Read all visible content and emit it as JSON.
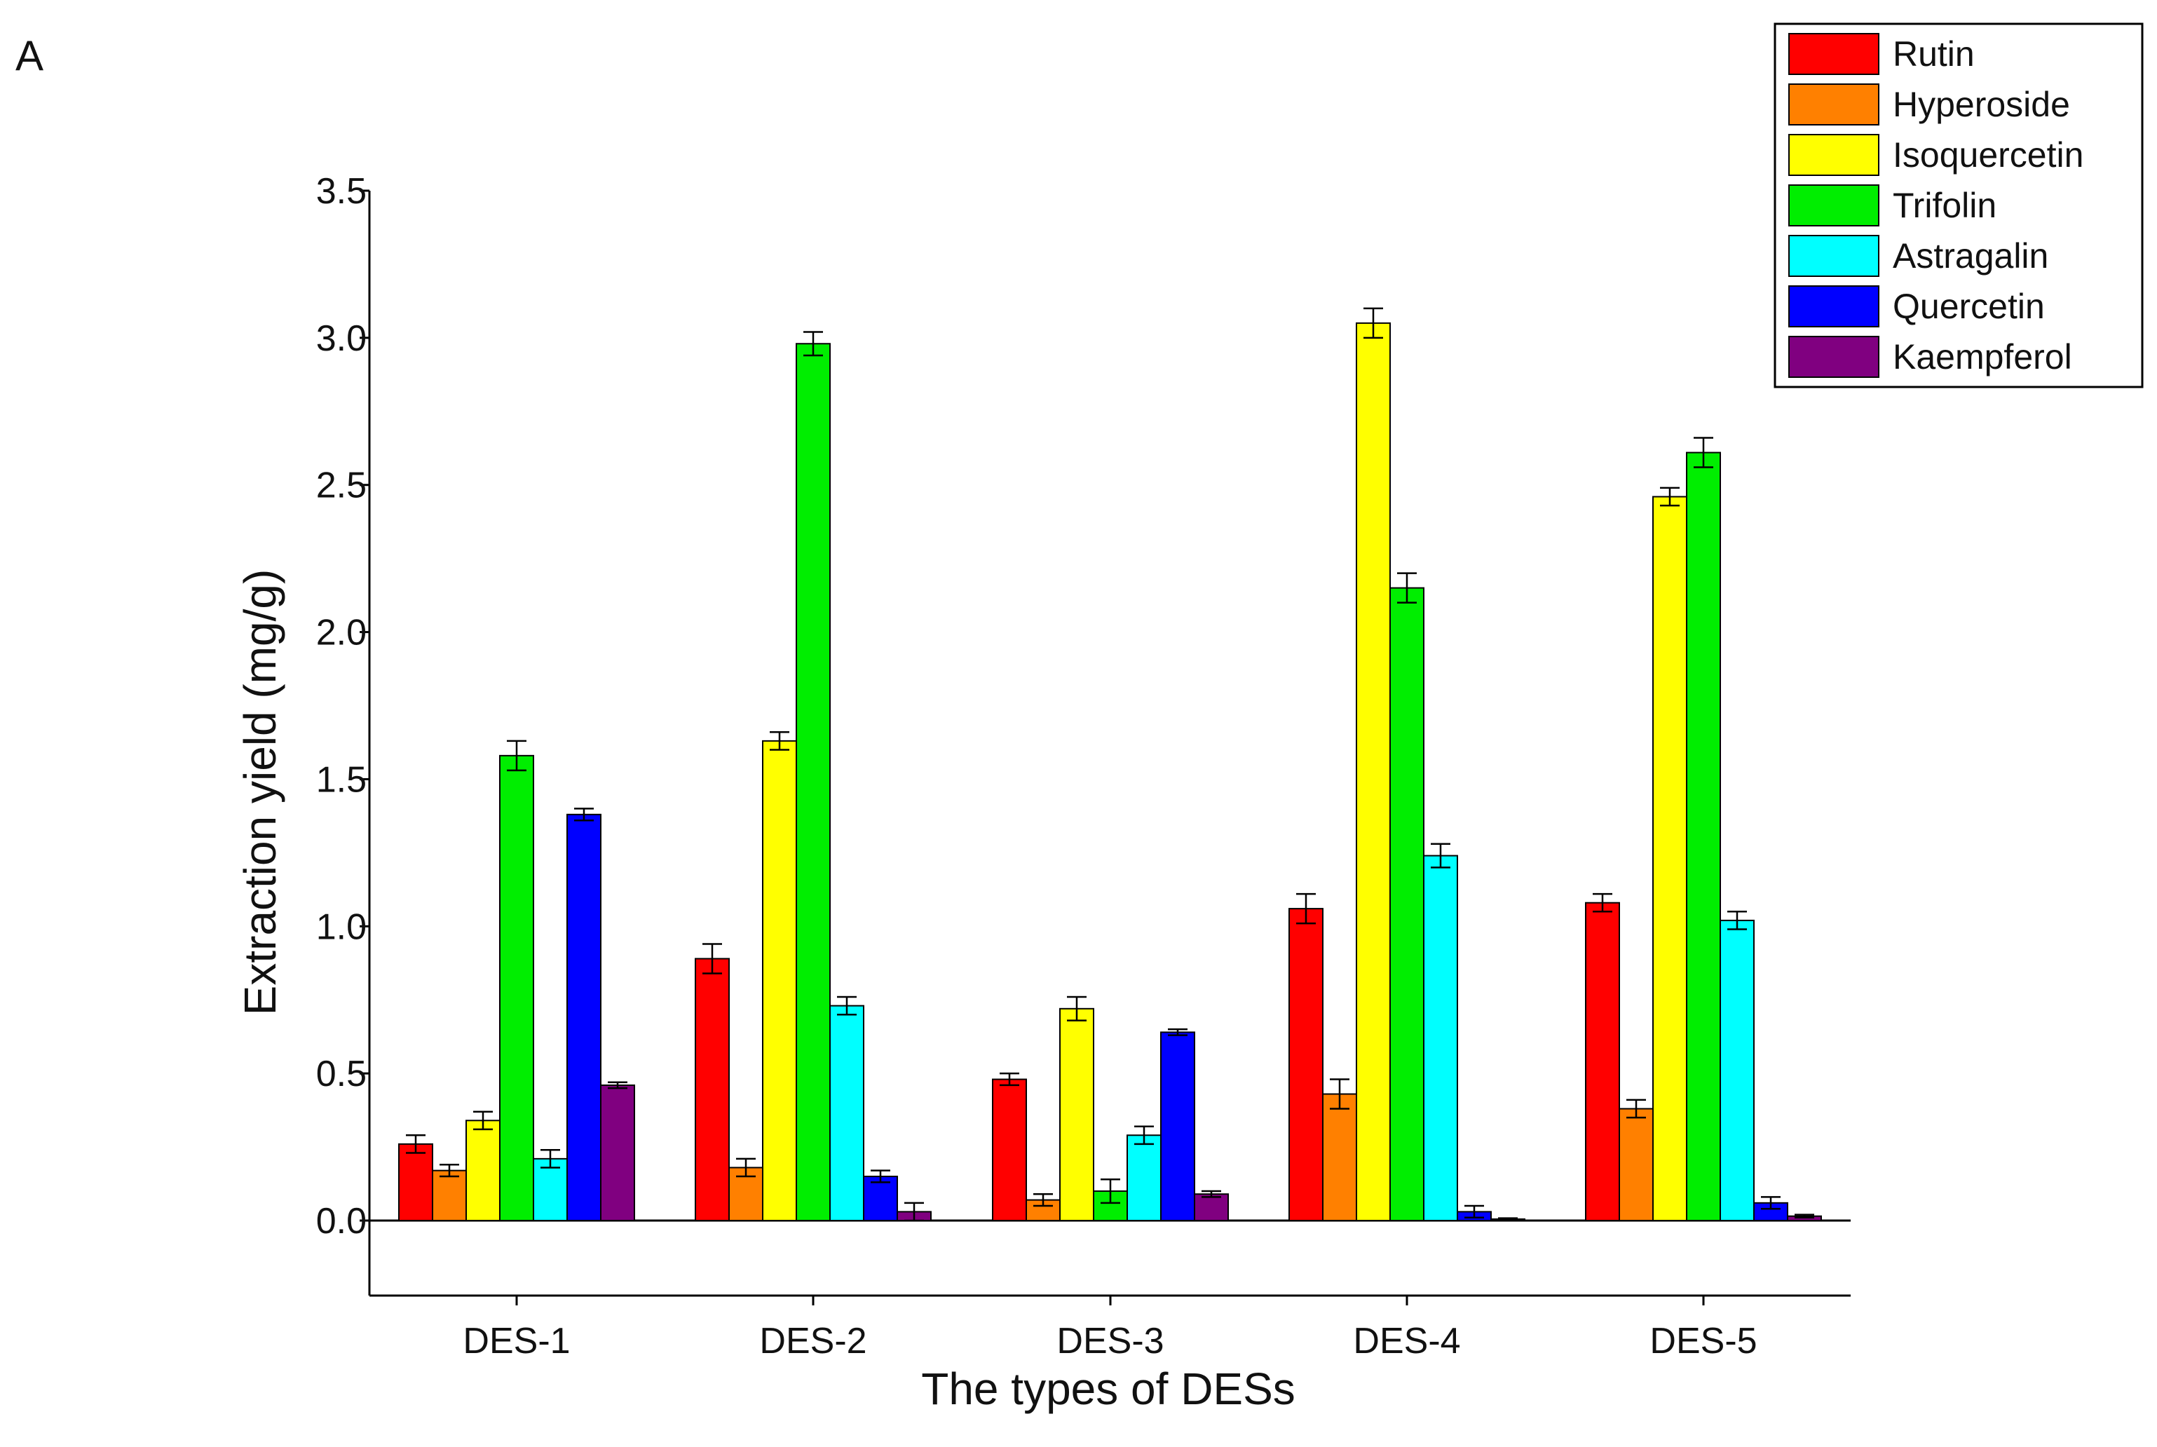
{
  "panel_label": "A",
  "chart_data": {
    "type": "bar",
    "title": "",
    "xlabel": "The types of DESs",
    "ylabel": "Extraction yield (mg/g)",
    "ylim": [
      -0.25,
      3.5
    ],
    "yticks": [
      "0.0",
      "0.5",
      "1.0",
      "1.5",
      "2.0",
      "2.5",
      "3.0",
      "3.5"
    ],
    "ytick_values": [
      0.0,
      0.5,
      1.0,
      1.5,
      2.0,
      2.5,
      3.0,
      3.5
    ],
    "categories": [
      "DES-1",
      "DES-2",
      "DES-3",
      "DES-4",
      "DES-5"
    ],
    "legend_position": "top-right",
    "grid": false,
    "series": [
      {
        "name": "Rutin",
        "color": "#ff0000",
        "values": [
          0.26,
          0.89,
          0.48,
          1.06,
          1.08
        ],
        "errors": [
          0.03,
          0.05,
          0.02,
          0.05,
          0.03
        ]
      },
      {
        "name": "Hyperoside",
        "color": "#ff8000",
        "values": [
          0.17,
          0.18,
          0.07,
          0.43,
          0.38
        ],
        "errors": [
          0.02,
          0.03,
          0.02,
          0.05,
          0.03
        ]
      },
      {
        "name": "Isoquercetin",
        "color": "#ffff00",
        "values": [
          0.34,
          1.63,
          0.72,
          3.05,
          2.46
        ],
        "errors": [
          0.03,
          0.03,
          0.04,
          0.05,
          0.03
        ]
      },
      {
        "name": "Trifolin",
        "color": "#00ee00",
        "values": [
          1.58,
          2.98,
          0.1,
          2.15,
          2.61
        ],
        "errors": [
          0.05,
          0.04,
          0.04,
          0.05,
          0.05
        ]
      },
      {
        "name": "Astragalin",
        "color": "#00ffff",
        "values": [
          0.21,
          0.73,
          0.29,
          1.24,
          1.02
        ],
        "errors": [
          0.03,
          0.03,
          0.03,
          0.04,
          0.03
        ]
      },
      {
        "name": "Quercetin",
        "color": "#0000ff",
        "values": [
          1.38,
          0.15,
          0.64,
          0.03,
          0.06
        ],
        "errors": [
          0.02,
          0.02,
          0.01,
          0.02,
          0.02
        ]
      },
      {
        "name": "Kaempferol",
        "color": "#800080",
        "values": [
          0.46,
          0.03,
          0.09,
          0.005,
          0.015
        ],
        "errors": [
          0.01,
          0.03,
          0.01,
          0.003,
          0.005
        ]
      }
    ]
  }
}
